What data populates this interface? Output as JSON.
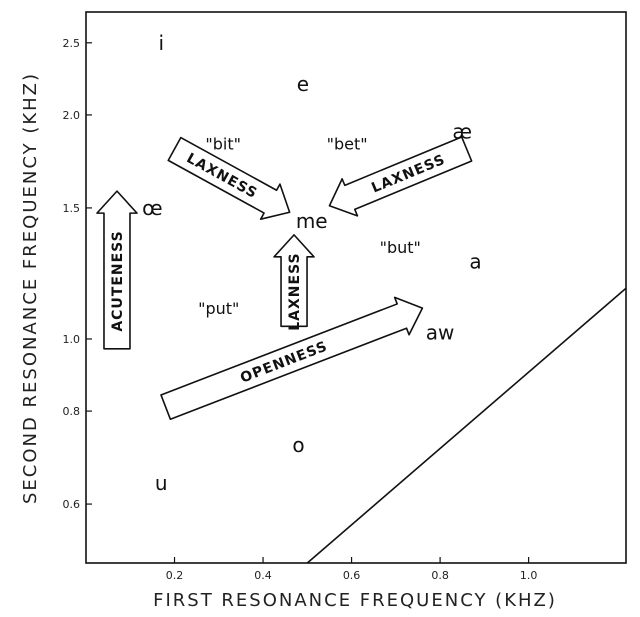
{
  "chart_data": {
    "type": "scatter",
    "xlabel": "FIRST RESONANCE FREQUENCY (KHZ)",
    "ylabel": "SECOND RESONANCE FREQUENCY (KHZ)",
    "xlim": [
      0.0,
      1.22
    ],
    "ylim": [
      0.5,
      2.75
    ],
    "y_scale": "log",
    "x_ticks": [
      0.2,
      0.4,
      0.6,
      0.8,
      1.0
    ],
    "x_tick_labels": [
      "0.2",
      "0.4",
      "0.6",
      "0.8",
      "1.0"
    ],
    "y_ticks": [
      0.6,
      0.8,
      1.0,
      1.5,
      2.0,
      2.5
    ],
    "y_tick_labels": [
      "0.6",
      "0.8",
      "1.0",
      "1.5",
      "2.0",
      "2.5"
    ],
    "grid": false,
    "points": [
      {
        "label": "i",
        "x": 0.17,
        "y": 2.5
      },
      {
        "label": "e",
        "x": 0.49,
        "y": 2.2
      },
      {
        "label": "æ",
        "x": 0.85,
        "y": 1.9
      },
      {
        "label": "œ",
        "x": 0.15,
        "y": 1.5
      },
      {
        "label": "me",
        "x": 0.51,
        "y": 1.44
      },
      {
        "label": "a",
        "x": 0.88,
        "y": 1.27
      },
      {
        "label": "aw",
        "x": 0.8,
        "y": 1.02
      },
      {
        "label": "o",
        "x": 0.48,
        "y": 0.72
      },
      {
        "label": "u",
        "x": 0.17,
        "y": 0.64
      }
    ],
    "word_labels": [
      {
        "text": "\"bit\"",
        "x": 0.31,
        "y": 1.83
      },
      {
        "text": "\"bet\"",
        "x": 0.59,
        "y": 1.83
      },
      {
        "text": "\"but\"",
        "x": 0.71,
        "y": 1.33
      },
      {
        "text": "\"put\"",
        "x": 0.3,
        "y": 1.1
      }
    ],
    "annotations": [
      {
        "text": "LAXNESS",
        "direction": "down-right",
        "from": [
          0.2,
          1.8
        ],
        "to": [
          0.46,
          1.48
        ]
      },
      {
        "text": "LAXNESS",
        "direction": "down-left",
        "from": [
          0.86,
          1.8
        ],
        "to": [
          0.55,
          1.51
        ]
      },
      {
        "text": "LAXNESS",
        "direction": "up",
        "from": [
          0.47,
          1.04
        ],
        "to": [
          0.47,
          1.38
        ]
      },
      {
        "text": "ACUTENESS",
        "direction": "up",
        "from": [
          0.07,
          0.97
        ],
        "to": [
          0.07,
          1.58
        ]
      },
      {
        "text": "OPENNESS",
        "direction": "up-right",
        "from": [
          0.18,
          0.81
        ],
        "to": [
          0.76,
          1.1
        ]
      }
    ],
    "boundary_line": {
      "from": [
        0.5,
        0.5
      ],
      "to": [
        1.22,
        1.17
      ]
    }
  }
}
